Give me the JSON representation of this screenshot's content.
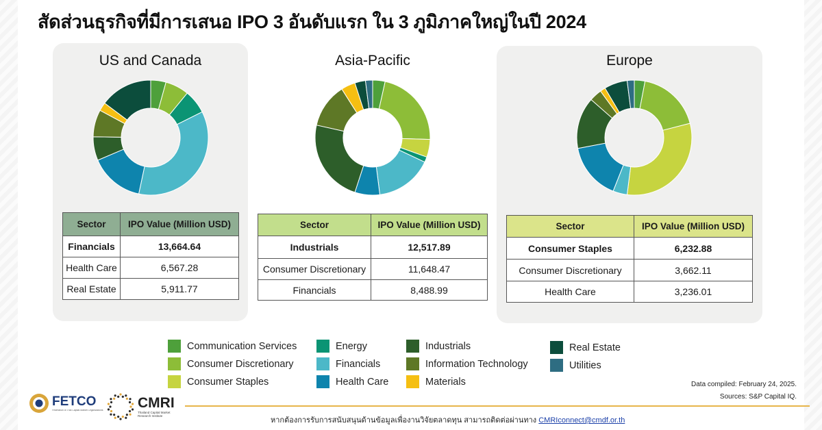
{
  "page": {
    "title": "สัดส่วนธุรกิจที่มีการเสนอ IPO 3 อันดับแรก ใน 3 ภูมิภาคใหญ่ในปี 2024",
    "data_compiled": "Data compiled: February 24, 2025.",
    "sources": "Sources: S&P Capital IQ.",
    "footer_contact_text": "หากต้องการรับการสนับสนุนด้านข้อมูลเพื่องานวิจัยตลาดทุน สามารถติดต่อผ่านทาง",
    "footer_contact_email": "CMRIconnect@cmdf.or.th",
    "logos": {
      "fetco": {
        "text": "FETCO",
        "tagline": "Federation of Thai Capital Market Organizations"
      },
      "cmri": {
        "text": "CMRI",
        "tagline": "Thailand Capital Market Research Institute"
      }
    }
  },
  "chart_data": [
    {
      "type": "pie",
      "title": "US and Canada",
      "donut": true,
      "slices": [
        {
          "sector": "Communication Services",
          "value": 4.5
        },
        {
          "sector": "Consumer Discretionary",
          "value": 7
        },
        {
          "sector": "Energy",
          "value": 7
        },
        {
          "sector": "Financials",
          "value": 37.5
        },
        {
          "sector": "Health Care",
          "value": 16
        },
        {
          "sector": "Industrials",
          "value": 7
        },
        {
          "sector": "Information Technology",
          "value": 8
        },
        {
          "sector": "Materials",
          "value": 2.5
        },
        {
          "sector": "Real Estate",
          "value": 15.5
        }
      ],
      "table": {
        "headers": [
          "Sector",
          "IPO Value (Million USD)"
        ],
        "rows": [
          [
            "Financials",
            "13,664.64"
          ],
          [
            "Health Care",
            "6,567.28"
          ],
          [
            "Real Estate",
            "5,911.77"
          ]
        ],
        "header_color": "#8fae93"
      }
    },
    {
      "type": "pie",
      "title": "Asia-Pacific",
      "donut": true,
      "slices": [
        {
          "sector": "Communication Services",
          "value": 3.5
        },
        {
          "sector": "Consumer Discretionary",
          "value": 22
        },
        {
          "sector": "Consumer Staples",
          "value": 5
        },
        {
          "sector": "Energy",
          "value": 1.5
        },
        {
          "sector": "Financials",
          "value": 16
        },
        {
          "sector": "Health Care",
          "value": 7
        },
        {
          "sector": "Industrials",
          "value": 23.5
        },
        {
          "sector": "Information Technology",
          "value": 12.5
        },
        {
          "sector": "Materials",
          "value": 4
        },
        {
          "sector": "Real Estate",
          "value": 3
        },
        {
          "sector": "Utilities",
          "value": 2
        }
      ],
      "table": {
        "headers": [
          "Sector",
          "IPO Value (Million USD)"
        ],
        "rows": [
          [
            "Industrials",
            "12,517.89"
          ],
          [
            "Consumer Discretionary",
            "11,648.47"
          ],
          [
            "Financials",
            "8,488.99"
          ]
        ],
        "header_color": "#c2de8c"
      }
    },
    {
      "type": "pie",
      "title": "Europe",
      "donut": true,
      "slices": [
        {
          "sector": "Communication Services",
          "value": 3
        },
        {
          "sector": "Consumer Discretionary",
          "value": 18
        },
        {
          "sector": "Consumer Staples",
          "value": 31
        },
        {
          "sector": "Financials",
          "value": 4
        },
        {
          "sector": "Health Care",
          "value": 16
        },
        {
          "sector": "Industrials",
          "value": 14.5
        },
        {
          "sector": "Information Technology",
          "value": 3.5
        },
        {
          "sector": "Materials",
          "value": 1.5
        },
        {
          "sector": "Real Estate",
          "value": 6.5
        },
        {
          "sector": "Utilities",
          "value": 2
        }
      ],
      "table": {
        "headers": [
          "Sector",
          "IPO Value (Million USD)"
        ],
        "rows": [
          [
            "Consumer Staples",
            "6,232.88"
          ],
          [
            "Consumer Discretionary",
            "3,662.11"
          ],
          [
            "Health Care",
            "3,236.01"
          ]
        ],
        "header_color": "#dbe48a"
      }
    }
  ],
  "legend": [
    {
      "label": "Communication Services",
      "color": "#4ea03b"
    },
    {
      "label": "Consumer Discretionary",
      "color": "#8dbd38"
    },
    {
      "label": "Consumer Staples",
      "color": "#c6d440"
    },
    {
      "label": "Energy",
      "color": "#0b9474"
    },
    {
      "label": "Financials",
      "color": "#4cb8c8"
    },
    {
      "label": "Health Care",
      "color": "#0e84ad"
    },
    {
      "label": "Industrials",
      "color": "#2d5e2a"
    },
    {
      "label": "Information Technology",
      "color": "#5e7826"
    },
    {
      "label": "Materials",
      "color": "#f5bf12"
    },
    {
      "label": "Real Estate",
      "color": "#0c4d3c"
    },
    {
      "label": "Utilities",
      "color": "#2e6d82"
    }
  ]
}
